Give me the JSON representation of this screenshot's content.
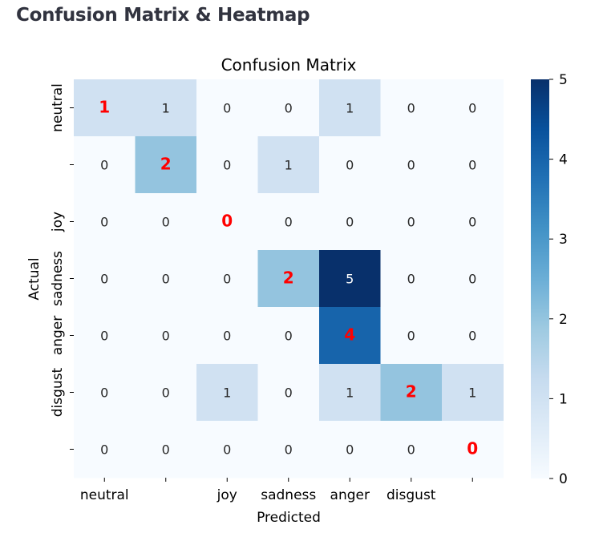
{
  "page": {
    "heading": "Confusion Matrix & Heatmap"
  },
  "chart_data": {
    "type": "heatmap",
    "title": "Confusion Matrix",
    "xlabel": "Predicted",
    "ylabel": "Actual",
    "x_tick_labels": [
      "neutral",
      "",
      "joy",
      "sadness",
      "anger",
      "disgust",
      ""
    ],
    "y_tick_labels": [
      "neutral",
      "",
      "joy",
      "sadness",
      "anger",
      "disgust",
      ""
    ],
    "matrix": [
      [
        1,
        1,
        0,
        0,
        1,
        0,
        0
      ],
      [
        0,
        2,
        0,
        1,
        0,
        0,
        0
      ],
      [
        0,
        0,
        0,
        0,
        0,
        0,
        0
      ],
      [
        0,
        0,
        0,
        2,
        5,
        0,
        0
      ],
      [
        0,
        0,
        0,
        0,
        4,
        0,
        0
      ],
      [
        0,
        0,
        1,
        0,
        1,
        2,
        1
      ],
      [
        0,
        0,
        0,
        0,
        0,
        0,
        0
      ]
    ],
    "colormap": "Blues",
    "vmin": 0,
    "vmax": 5,
    "colorbar_ticks": [
      0,
      1,
      2,
      3,
      4,
      5
    ],
    "diagonal_annotation_color": "#ff0000",
    "annotation_light_color": "#ffffff",
    "annotation_dark_color": "#262626"
  }
}
